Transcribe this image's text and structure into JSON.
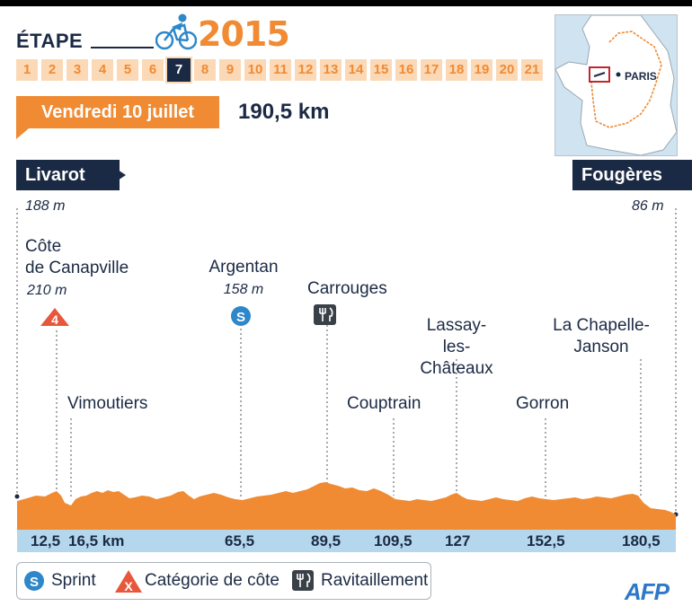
{
  "header": {
    "etape_label": "ÉTAPE",
    "year": "2015",
    "stages": [
      "1",
      "2",
      "3",
      "4",
      "5",
      "6",
      "7",
      "8",
      "9",
      "10",
      "11",
      "12",
      "13",
      "14",
      "15",
      "16",
      "17",
      "18",
      "19",
      "20",
      "21"
    ],
    "active_stage": "7",
    "date": "Vendredi 10 juillet",
    "distance": "190,5 km"
  },
  "map": {
    "city_label": "PARIS"
  },
  "route": {
    "start": {
      "name": "Livarot",
      "altitude": "188 m"
    },
    "finish": {
      "name": "Fougères",
      "altitude": "86 m"
    }
  },
  "points": {
    "canapville": {
      "name_line1": "Côte",
      "name_line2": "de Canapville",
      "altitude": "210 m",
      "category": "4",
      "km": "12,5"
    },
    "vimoutiers": {
      "name": "Vimoutiers",
      "km": "16,5 km"
    },
    "argentan": {
      "name": "Argentan",
      "altitude": "158 m",
      "marker": "S",
      "km": "65,5"
    },
    "carrouges": {
      "name": "Carrouges",
      "km": "89,5"
    },
    "couptrain": {
      "name": "Couptrain",
      "km": "109,5"
    },
    "lassay": {
      "name_line1": "Lassay-",
      "name_line2": "les-Châteaux",
      "km": "127"
    },
    "gorron": {
      "name": "Gorron",
      "km": "152,5"
    },
    "chapelle": {
      "name_line1": "La Chapelle-",
      "name_line2": "Janson",
      "km": "180,5"
    }
  },
  "legend": {
    "sprint_icon": "S",
    "sprint": "Sprint",
    "climb_icon": "X",
    "climb": "Catégorie de côte",
    "feed": "Ravitaillement"
  },
  "credit": "AFP",
  "colors": {
    "orange": "#f08a33",
    "navy": "#1b2a44",
    "sprint_blue": "#2d87c9",
    "km_bar": "#b4d7ed"
  }
}
